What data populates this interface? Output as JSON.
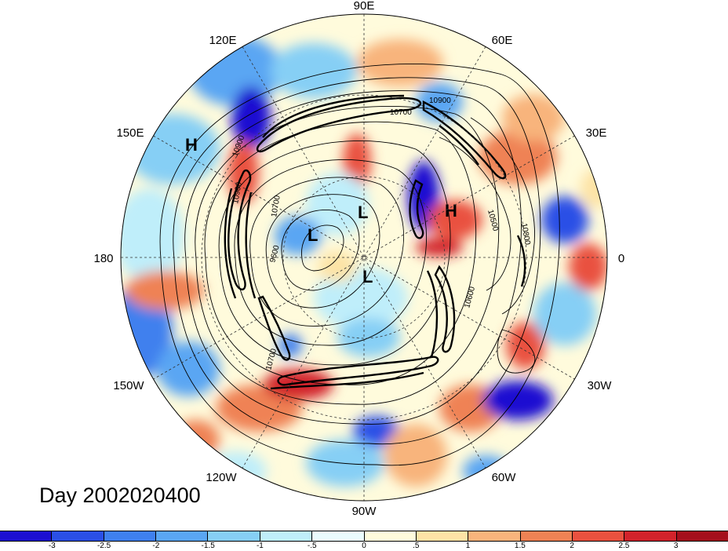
{
  "title": "Day 2002020400",
  "longitude_labels": {
    "lon_0": "0",
    "lon_30E": "30E",
    "lon_60E": "60E",
    "lon_90E": "90E",
    "lon_120E": "120E",
    "lon_150E": "150E",
    "lon_180": "180",
    "lon_150W": "150W",
    "lon_120W": "120W",
    "lon_90W": "90W",
    "lon_60W": "60W",
    "lon_30W": "30W"
  },
  "pressure_centers": {
    "high_1": "H",
    "high_2": "H",
    "low_1": "L",
    "low_2": "L",
    "low_3": "L"
  },
  "contour_labels": {
    "c1": "10900",
    "c2": "10700",
    "c3": "10900",
    "c4": "10900",
    "c5": "10700",
    "c6": "10800",
    "c7": "10500",
    "c8": "9600",
    "c9": "10700",
    "c10": "10600"
  },
  "colorbar": {
    "colors": [
      "#1c0fd1",
      "#2a4fe6",
      "#3f80ee",
      "#5aa6f3",
      "#86cff5",
      "#bfeefa",
      "#eafbfd",
      "#fffbdc",
      "#fde3a6",
      "#f8b47c",
      "#ef8254",
      "#e9513f",
      "#d2232b",
      "#a50f1c"
    ],
    "labels": [
      "-3",
      "-2.5",
      "-2",
      "-1.5",
      "-1",
      "-.5",
      "0",
      ".5",
      "1",
      "1.5",
      "2",
      "2.5",
      "3"
    ]
  }
}
